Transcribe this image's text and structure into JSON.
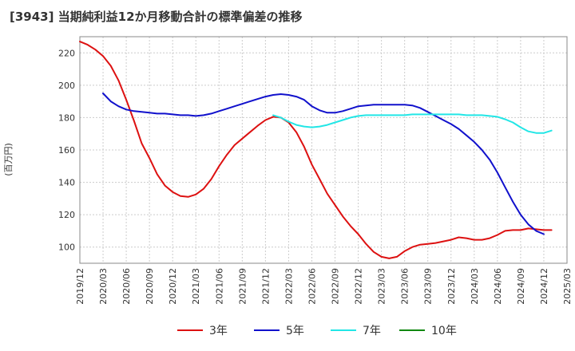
{
  "chart_data": {
    "type": "line",
    "title": "[3943]  当期純利益12か月移動合計の標準偏差の推移",
    "ylabel": "(百万円)",
    "xlabel": "",
    "ylim": [
      90,
      230
    ],
    "yticks": [
      100,
      120,
      140,
      160,
      180,
      200,
      220
    ],
    "xlim": [
      "2019-12",
      "2025-03"
    ],
    "xticks": [
      "2019/12",
      "2020/03",
      "2020/06",
      "2020/09",
      "2020/12",
      "2021/03",
      "2021/06",
      "2021/09",
      "2021/12",
      "2022/03",
      "2022/06",
      "2022/09",
      "2022/12",
      "2023/03",
      "2023/06",
      "2023/09",
      "2023/12",
      "2024/03",
      "2024/06",
      "2024/09",
      "2024/12",
      "2025/03"
    ],
    "grid": true,
    "legend_position": "bottom",
    "series": [
      {
        "name": "3年",
        "color": "#dd1111",
        "points": [
          [
            "2019-12",
            227
          ],
          [
            "2020-01",
            225
          ],
          [
            "2020-02",
            222
          ],
          [
            "2020-03",
            218
          ],
          [
            "2020-04",
            212
          ],
          [
            "2020-05",
            203
          ],
          [
            "2020-06",
            191
          ],
          [
            "2020-07",
            178
          ],
          [
            "2020-08",
            164
          ],
          [
            "2020-09",
            155
          ],
          [
            "2020-10",
            145
          ],
          [
            "2020-11",
            138
          ],
          [
            "2020-12",
            134
          ],
          [
            "2021-01",
            131.5
          ],
          [
            "2021-02",
            131
          ],
          [
            "2021-03",
            132.5
          ],
          [
            "2021-04",
            136
          ],
          [
            "2021-05",
            142
          ],
          [
            "2021-06",
            150
          ],
          [
            "2021-07",
            157
          ],
          [
            "2021-08",
            163
          ],
          [
            "2021-09",
            167
          ],
          [
            "2021-10",
            171
          ],
          [
            "2021-11",
            175
          ],
          [
            "2021-12",
            178.5
          ],
          [
            "2022-01",
            180.5
          ],
          [
            "2022-02",
            180
          ],
          [
            "2022-03",
            177
          ],
          [
            "2022-04",
            171
          ],
          [
            "2022-05",
            162
          ],
          [
            "2022-06",
            151
          ],
          [
            "2022-07",
            142
          ],
          [
            "2022-08",
            133
          ],
          [
            "2022-09",
            126
          ],
          [
            "2022-10",
            119
          ],
          [
            "2022-11",
            113
          ],
          [
            "2022-12",
            108
          ],
          [
            "2023-01",
            102
          ],
          [
            "2023-02",
            97
          ],
          [
            "2023-03",
            94
          ],
          [
            "2023-04",
            93
          ],
          [
            "2023-05",
            94
          ],
          [
            "2023-06",
            97.5
          ],
          [
            "2023-07",
            100
          ],
          [
            "2023-08",
            101.5
          ],
          [
            "2023-09",
            102
          ],
          [
            "2023-10",
            102.5
          ],
          [
            "2023-11",
            103.5
          ],
          [
            "2023-12",
            104.5
          ],
          [
            "2024-01",
            106
          ],
          [
            "2024-02",
            105.5
          ],
          [
            "2024-03",
            104.5
          ],
          [
            "2024-04",
            104.5
          ],
          [
            "2024-05",
            105.5
          ],
          [
            "2024-06",
            107.5
          ],
          [
            "2024-07",
            110
          ],
          [
            "2024-08",
            110.5
          ],
          [
            "2024-09",
            110.5
          ],
          [
            "2024-10",
            111.5
          ],
          [
            "2024-11",
            111
          ],
          [
            "2024-12",
            110.5
          ],
          [
            "2025-01",
            110.5
          ]
        ]
      },
      {
        "name": "5年",
        "color": "#1111cc",
        "points": [
          [
            "2020-03",
            195
          ],
          [
            "2020-04",
            190
          ],
          [
            "2020-05",
            187
          ],
          [
            "2020-06",
            185
          ],
          [
            "2020-07",
            184
          ],
          [
            "2020-08",
            183.5
          ],
          [
            "2020-09",
            183
          ],
          [
            "2020-10",
            182.5
          ],
          [
            "2020-11",
            182.5
          ],
          [
            "2020-12",
            182
          ],
          [
            "2021-01",
            181.5
          ],
          [
            "2021-02",
            181.5
          ],
          [
            "2021-03",
            181
          ],
          [
            "2021-04",
            181.5
          ],
          [
            "2021-05",
            182.5
          ],
          [
            "2021-06",
            184
          ],
          [
            "2021-07",
            185.5
          ],
          [
            "2021-08",
            187
          ],
          [
            "2021-09",
            188.5
          ],
          [
            "2021-10",
            190
          ],
          [
            "2021-11",
            191.5
          ],
          [
            "2021-12",
            193
          ],
          [
            "2022-01",
            194
          ],
          [
            "2022-02",
            194.5
          ],
          [
            "2022-03",
            194
          ],
          [
            "2022-04",
            193
          ],
          [
            "2022-05",
            191
          ],
          [
            "2022-06",
            187
          ],
          [
            "2022-07",
            184.5
          ],
          [
            "2022-08",
            183
          ],
          [
            "2022-09",
            183
          ],
          [
            "2022-10",
            184
          ],
          [
            "2022-11",
            185.5
          ],
          [
            "2022-12",
            187
          ],
          [
            "2023-01",
            187.5
          ],
          [
            "2023-02",
            188
          ],
          [
            "2023-03",
            188
          ],
          [
            "2023-04",
            188
          ],
          [
            "2023-05",
            188
          ],
          [
            "2023-06",
            188
          ],
          [
            "2023-07",
            187.5
          ],
          [
            "2023-08",
            186
          ],
          [
            "2023-09",
            183.5
          ],
          [
            "2023-10",
            181
          ],
          [
            "2023-11",
            178.5
          ],
          [
            "2023-12",
            176
          ],
          [
            "2024-01",
            173
          ],
          [
            "2024-02",
            169
          ],
          [
            "2024-03",
            165
          ],
          [
            "2024-04",
            160
          ],
          [
            "2024-05",
            154
          ],
          [
            "2024-06",
            146
          ],
          [
            "2024-07",
            137
          ],
          [
            "2024-08",
            128
          ],
          [
            "2024-09",
            120
          ],
          [
            "2024-10",
            114
          ],
          [
            "2024-11",
            110
          ],
          [
            "2024-12",
            108
          ]
        ]
      },
      {
        "name": "7年",
        "color": "#22e6e6",
        "points": [
          [
            "2022-01",
            181.5
          ],
          [
            "2022-02",
            180
          ],
          [
            "2022-03",
            177.5
          ],
          [
            "2022-04",
            175.5
          ],
          [
            "2022-05",
            174.5
          ],
          [
            "2022-06",
            174
          ],
          [
            "2022-07",
            174.5
          ],
          [
            "2022-08",
            175.5
          ],
          [
            "2022-09",
            177
          ],
          [
            "2022-10",
            178.5
          ],
          [
            "2022-11",
            180
          ],
          [
            "2022-12",
            181
          ],
          [
            "2023-01",
            181.5
          ],
          [
            "2023-02",
            181.5
          ],
          [
            "2023-03",
            181.5
          ],
          [
            "2023-04",
            181.5
          ],
          [
            "2023-05",
            181.5
          ],
          [
            "2023-06",
            181.5
          ],
          [
            "2023-07",
            182
          ],
          [
            "2023-08",
            182
          ],
          [
            "2023-09",
            182
          ],
          [
            "2023-10",
            182
          ],
          [
            "2023-11",
            182
          ],
          [
            "2023-12",
            182
          ],
          [
            "2024-01",
            182
          ],
          [
            "2024-02",
            181.5
          ],
          [
            "2024-03",
            181.5
          ],
          [
            "2024-04",
            181.5
          ],
          [
            "2024-05",
            181
          ],
          [
            "2024-06",
            180.5
          ],
          [
            "2024-07",
            179
          ],
          [
            "2024-08",
            177
          ],
          [
            "2024-09",
            174
          ],
          [
            "2024-10",
            171.5
          ],
          [
            "2024-11",
            170.5
          ],
          [
            "2024-12",
            170.5
          ],
          [
            "2025-01",
            172
          ]
        ]
      },
      {
        "name": "10年",
        "color": "#118811",
        "points": []
      }
    ]
  }
}
